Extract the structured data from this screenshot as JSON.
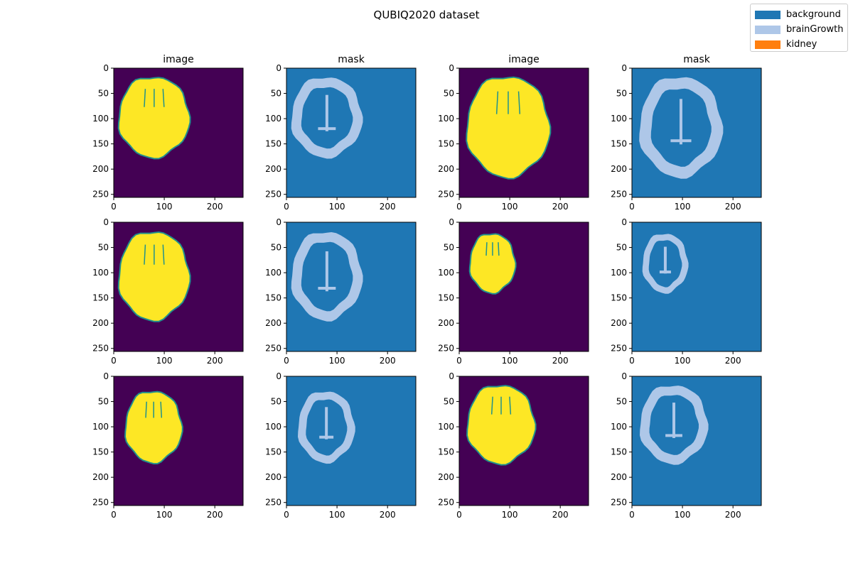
{
  "figure": {
    "title": "QUBIQ2020 dataset"
  },
  "legend": {
    "placement": "top-right",
    "items": [
      {
        "label": "background",
        "color": "#1f77b4"
      },
      {
        "label": "brainGrowth",
        "color": "#aec7e8"
      },
      {
        "label": "kidney",
        "color": "#ff7f0e"
      }
    ]
  },
  "colors": {
    "image_background": "#440154",
    "image_foreground": "#fde725",
    "image_edge": "#21918c",
    "mask_background": "#1f77b4",
    "mask_foreground": "#aec7e8"
  },
  "chart_data": {
    "type": "heatmap",
    "layout": {
      "rows": 3,
      "cols": 4
    },
    "xlim": [
      0,
      256
    ],
    "ylim": [
      256,
      0
    ],
    "x_ticks": [
      0,
      100,
      200
    ],
    "y_ticks": [
      0,
      50,
      100,
      150,
      200,
      250
    ],
    "tick_labels_x": [
      "0",
      "100",
      "200"
    ],
    "tick_labels_y": [
      "0",
      "50",
      "100",
      "150",
      "200",
      "250"
    ],
    "panels": [
      {
        "title": "image",
        "kind": "image",
        "region": {
          "cx": 80,
          "cy": 97,
          "rx": 70,
          "ry": 80
        }
      },
      {
        "title": "mask",
        "kind": "mask",
        "region": {
          "cx": 80,
          "cy": 97,
          "rx": 70,
          "ry": 80
        }
      },
      {
        "title": "image",
        "kind": "image",
        "region": {
          "cx": 97,
          "cy": 116,
          "rx": 82,
          "ry": 100
        }
      },
      {
        "title": "mask",
        "kind": "mask",
        "region": {
          "cx": 97,
          "cy": 116,
          "rx": 82,
          "ry": 100
        }
      },
      {
        "title": "",
        "kind": "image",
        "region": {
          "cx": 80,
          "cy": 106,
          "rx": 70,
          "ry": 88
        }
      },
      {
        "title": "",
        "kind": "mask",
        "region": {
          "cx": 80,
          "cy": 106,
          "rx": 70,
          "ry": 88
        }
      },
      {
        "title": "",
        "kind": "image",
        "region": {
          "cx": 66,
          "cy": 81,
          "rx": 45,
          "ry": 59
        }
      },
      {
        "title": "",
        "kind": "mask",
        "region": {
          "cx": 66,
          "cy": 81,
          "rx": 45,
          "ry": 59
        }
      },
      {
        "title": "",
        "kind": "image",
        "region": {
          "cx": 79,
          "cy": 100,
          "rx": 56,
          "ry": 71
        }
      },
      {
        "title": "",
        "kind": "mask",
        "region": {
          "cx": 79,
          "cy": 100,
          "rx": 56,
          "ry": 71
        }
      },
      {
        "title": "",
        "kind": "image",
        "region": {
          "cx": 83,
          "cy": 95,
          "rx": 67,
          "ry": 78
        }
      },
      {
        "title": "",
        "kind": "mask",
        "region": {
          "cx": 83,
          "cy": 95,
          "rx": 67,
          "ry": 78
        }
      }
    ]
  }
}
